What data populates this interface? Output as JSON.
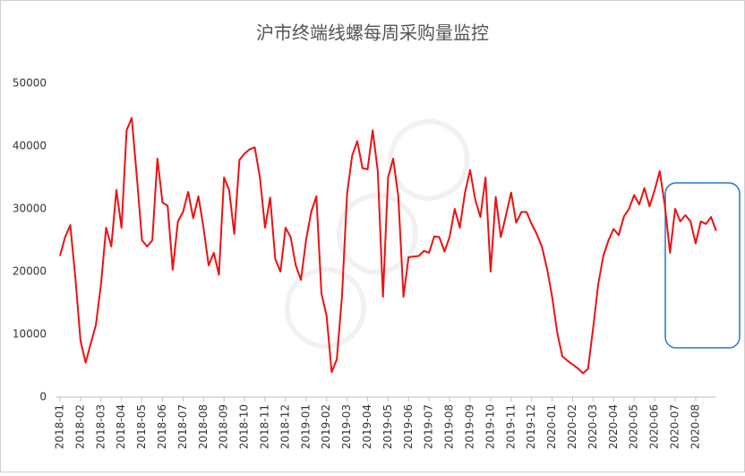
{
  "chart_data": {
    "type": "line",
    "title": "沪市终端线螺每周采购量监控",
    "categories": [
      "2018-01",
      null,
      null,
      null,
      "2018-02",
      null,
      null,
      null,
      "2018-03",
      null,
      null,
      null,
      "2018-04",
      null,
      null,
      null,
      "2018-05",
      null,
      null,
      null,
      "2018-06",
      null,
      null,
      null,
      "2018-07",
      null,
      null,
      null,
      "2018-08",
      null,
      null,
      null,
      "2018-09",
      null,
      null,
      null,
      "2018-10",
      null,
      null,
      null,
      "2018-11",
      null,
      null,
      null,
      "2018-12",
      null,
      null,
      null,
      "2019-01",
      null,
      null,
      null,
      "2019-02",
      null,
      null,
      null,
      "2019-03",
      null,
      null,
      null,
      "2019-04",
      null,
      null,
      null,
      "2019-05",
      null,
      null,
      null,
      "2019-06",
      null,
      null,
      null,
      "2019-07",
      null,
      null,
      null,
      "2019-08",
      null,
      null,
      null,
      "2019-09",
      null,
      null,
      null,
      "2019-10",
      null,
      null,
      null,
      "2019-11",
      null,
      null,
      null,
      "2019-12",
      null,
      null,
      null,
      "2020-01",
      null,
      null,
      null,
      "2020-02",
      null,
      null,
      null,
      "2020-03",
      null,
      null,
      null,
      "2020-04",
      null,
      null,
      null,
      "2020-05",
      null,
      null,
      null,
      "2020-06",
      null,
      null,
      null,
      "2020-07",
      null,
      null,
      null,
      "2020-08",
      null,
      null,
      null,
      null
    ],
    "values": [
      22500,
      25500,
      27400,
      19000,
      9000,
      5500,
      8500,
      11500,
      18000,
      27000,
      24000,
      33000,
      27000,
      42500,
      44500,
      35000,
      25000,
      24000,
      25000,
      38000,
      31000,
      30500,
      20300,
      28000,
      29500,
      32700,
      28500,
      32000,
      27000,
      21000,
      23000,
      19500,
      35000,
      33000,
      26000,
      37800,
      38800,
      39500,
      39800,
      35000,
      27000,
      31800,
      22000,
      20000,
      27000,
      25500,
      21000,
      18700,
      25000,
      29500,
      32000,
      16500,
      13000,
      4000,
      6000,
      16000,
      32400,
      38500,
      40800,
      36500,
      36300,
      42500,
      36000,
      16000,
      35000,
      38000,
      32000,
      16000,
      22300,
      22400,
      22500,
      23300,
      23000,
      25600,
      25500,
      23200,
      25500,
      30000,
      27000,
      32600,
      36200,
      31500,
      28700,
      35000,
      20000,
      31900,
      25500,
      29000,
      32600,
      27800,
      29500,
      29500,
      27600,
      26000,
      24000,
      20500,
      16000,
      10300,
      6500,
      5800,
      5200,
      4600,
      3800,
      4500,
      11000,
      18000,
      22500,
      25000,
      26800,
      25800,
      28800,
      30000,
      32200,
      30700,
      33300,
      30400,
      33000,
      36000,
      30500,
      23000,
      30000,
      28000,
      29000,
      28000,
      24500,
      28000,
      27600,
      28700,
      26500
    ],
    "color": "#ee1111",
    "ylim": [
      0,
      50000
    ],
    "yticks": [
      0,
      10000,
      20000,
      30000,
      40000,
      50000
    ]
  }
}
